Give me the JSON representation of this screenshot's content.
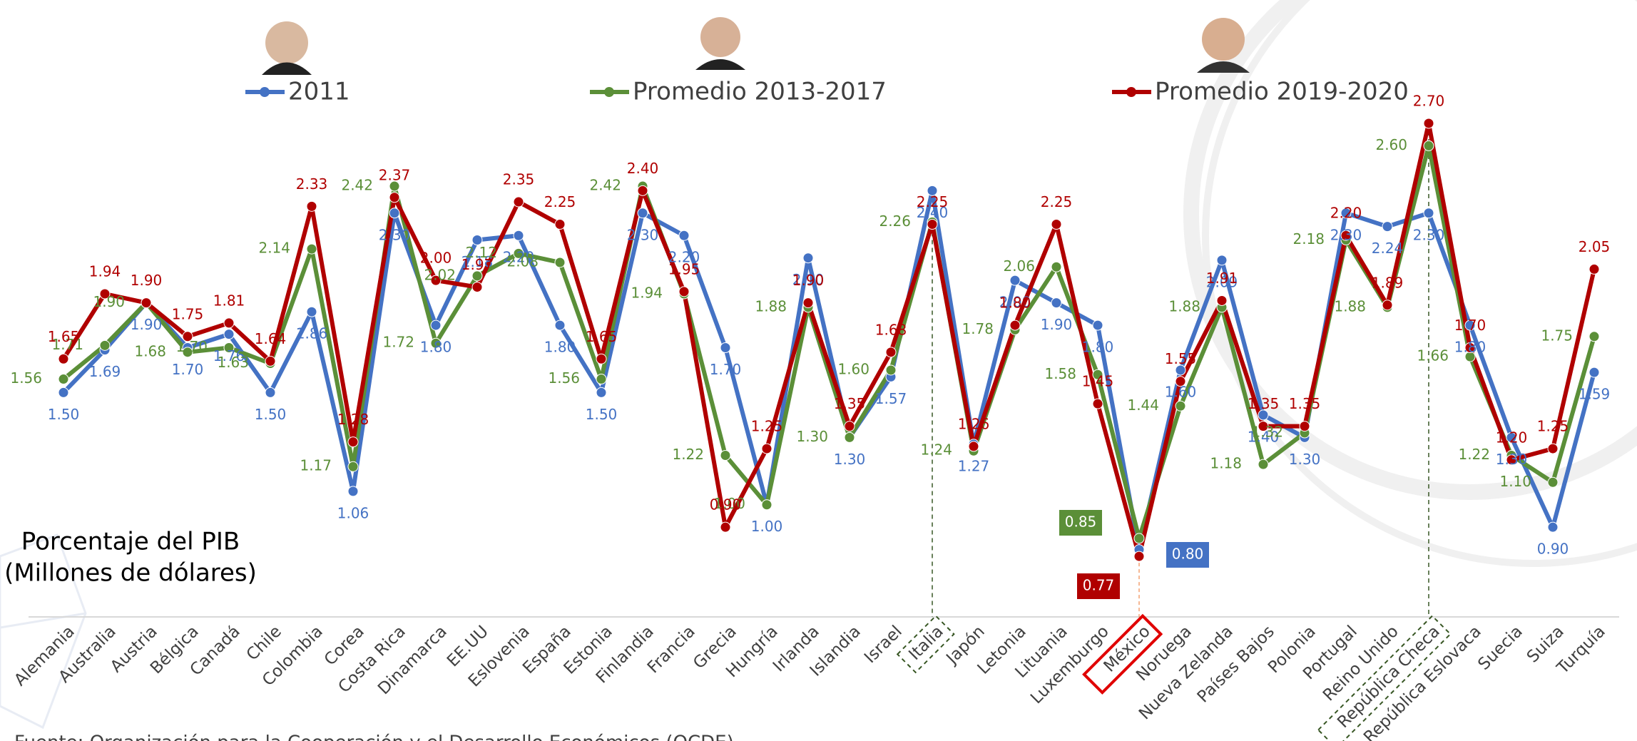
{
  "chart_data": {
    "type": "line",
    "title": "Porcentaje del PIB",
    "subtitle": "(Millones de dólares)",
    "source": "Fuente: Organización para la Cooperación y el Desarrollo Económicos (OCDE)",
    "categories": [
      "Alemania",
      "Australia",
      "Austria",
      "Bélgica",
      "Canadá",
      "Chile",
      "Colombia",
      "Corea",
      "Costa Rica",
      "Dinamarca",
      "EE.UU",
      "Eslovenia",
      "España",
      "Estonia",
      "Finlandia",
      "Francia",
      "Grecia",
      "Hungría",
      "Irlanda",
      "Islandia",
      "Israel",
      "Italia",
      "Japón",
      "Letonia",
      "Lituania",
      "Luxemburgo",
      "México",
      "Noruega",
      "Nueva Zelanda",
      "Países Bajos",
      "Polonia",
      "Portugal",
      "Reino Unido",
      "República Checa",
      "República Eslovaca",
      "Suecia",
      "Suiza",
      "Turquía"
    ],
    "series": [
      {
        "name": "2011",
        "color": "#4472c4",
        "values": [
          1.5,
          1.69,
          1.9,
          1.7,
          1.76,
          1.5,
          1.86,
          1.06,
          2.3,
          1.8,
          2.18,
          2.2,
          1.8,
          1.5,
          2.3,
          2.2,
          1.7,
          1.0,
          2.1,
          1.3,
          1.57,
          2.4,
          1.27,
          2.0,
          1.9,
          1.8,
          0.8,
          1.6,
          2.09,
          1.4,
          1.3,
          2.3,
          2.24,
          2.3,
          1.8,
          1.3,
          0.9,
          1.59
        ],
        "value_labels": [
          "1.50",
          "1.69",
          "1.90",
          "1.70",
          "1.76",
          "1.50",
          "1.86",
          "1.06",
          "2.30",
          "1.80",
          "2.18",
          "2.20",
          "1.80",
          "1.50",
          "2.30",
          "2.20",
          "1.70",
          "1.00",
          "2.10",
          "1.30",
          "1.57",
          "2.40",
          "1.27",
          "2.00",
          "1.90",
          "1.80",
          "0.80",
          "1.60",
          "2.09",
          "1.40",
          "1.30",
          "2.30",
          "2.24",
          "2.30",
          "1.80",
          "1.30",
          "0.90",
          "1.59"
        ]
      },
      {
        "name": "Promedio 2013-2017",
        "color": "#5b8f38",
        "values": [
          1.56,
          1.71,
          1.9,
          1.68,
          1.7,
          1.63,
          2.14,
          1.17,
          2.42,
          1.72,
          2.02,
          2.12,
          2.08,
          1.56,
          2.42,
          1.94,
          1.22,
          1.0,
          1.88,
          1.3,
          1.6,
          2.26,
          1.24,
          1.78,
          2.06,
          1.58,
          0.85,
          1.44,
          1.88,
          1.18,
          1.32,
          2.18,
          1.88,
          2.6,
          1.66,
          1.22,
          1.1,
          1.75
        ],
        "value_labels": [
          "1.56",
          "1.71",
          "1.90",
          "1.68",
          "1.70",
          "1.63",
          "2.14",
          "1.17",
          "2.42",
          "1.72",
          "2.02",
          "2.12",
          "2.08",
          "1.56",
          "2.42",
          "1.94",
          "1.22",
          "1.00",
          "1.88",
          "1.30",
          "1.60",
          "2.26",
          "1.24",
          "1.78",
          "2.06",
          "1.58",
          "0.85",
          "1.44",
          "1.88",
          "1.18",
          "1.32",
          "2.18",
          "1.88",
          "2.60",
          "1.66",
          "1.22",
          "1.10",
          "1.75"
        ]
      },
      {
        "name": "Promedio 2019-2020",
        "color": "#b00000",
        "values": [
          1.65,
          1.94,
          1.9,
          1.75,
          1.81,
          1.64,
          2.33,
          1.28,
          2.37,
          2.0,
          1.97,
          2.35,
          2.25,
          1.65,
          2.4,
          1.95,
          0.9,
          1.25,
          1.9,
          1.35,
          1.68,
          2.25,
          1.26,
          1.8,
          2.25,
          1.45,
          0.77,
          1.55,
          1.91,
          1.35,
          1.35,
          2.2,
          1.89,
          2.7,
          1.7,
          1.2,
          1.25,
          2.05
        ],
        "value_labels": [
          "1.65",
          "1.94",
          "1.90",
          "1.75",
          "1.81",
          "1.64",
          "2.33",
          "1.28",
          "2.37",
          "2.00",
          "1.97",
          "2.35",
          "2.25",
          "1.65",
          "2.40",
          "1.95",
          "0.90",
          "1.25",
          "1.90",
          "1.35",
          "1.68",
          "2.25",
          "1.26",
          "1.80",
          "2.25",
          "1.45",
          "0.77",
          "1.55",
          "1.91",
          "1.35",
          "1.35",
          "2.20",
          "1.89",
          "2.70",
          "1.70",
          "1.20",
          "1.25",
          "2.05"
        ]
      }
    ],
    "ylim": [
      0.5,
      2.8
    ]
  }
}
